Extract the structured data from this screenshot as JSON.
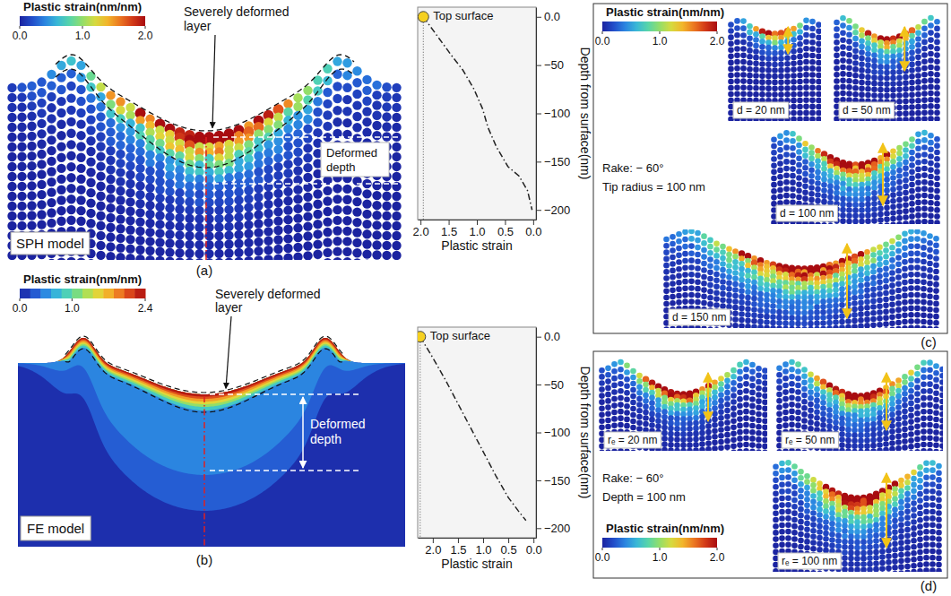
{
  "chart_data": [
    {
      "type": "line",
      "x": [
        1.95,
        1.7,
        1.45,
        1.25,
        1.05,
        0.9,
        0.8,
        0.65,
        0.45,
        0.25,
        0.1,
        0.02
      ],
      "values": [
        0,
        -20,
        -40,
        -55,
        -75,
        -95,
        -115,
        -135,
        -155,
        -165,
        -180,
        -200
      ],
      "color": "#222222",
      "line_style": "dashdot",
      "annotation": "Top surface",
      "x_label": "Plastic strain",
      "y_label": "Depth from surface(nm)",
      "xlim": [
        2.05,
        -0.05
      ],
      "xticks": [
        {
          "value": 2,
          "label": "2.0"
        },
        1.5,
        {
          "value": 1,
          "label": "1.0"
        },
        0.5,
        {
          "value": 0,
          "label": "0.0"
        }
      ],
      "ylim": [
        10,
        -210
      ],
      "yticks": [
        {
          "value": 0,
          "label": "0.0"
        },
        {
          "value": -50,
          "label": "−50"
        },
        {
          "value": -100,
          "label": "−100"
        },
        {
          "value": -150,
          "label": "−150"
        },
        {
          "value": -200,
          "label": "−200"
        }
      ]
    },
    {
      "type": "line",
      "x": [
        2.25,
        2.0,
        1.75,
        1.5,
        1.25,
        1.0,
        0.75,
        0.5,
        0.3,
        0.15
      ],
      "values": [
        0,
        -22,
        -45,
        -70,
        -95,
        -120,
        -145,
        -168,
        -182,
        -192
      ],
      "color": "#222222",
      "line_style": "dashdot",
      "annotation": "Top surface",
      "x_label": "Plastic strain",
      "y_label": "Depth from surface(nm)",
      "xlim": [
        2.3,
        -0.05
      ],
      "xticks": [
        {
          "value": 2,
          "label": "2.0"
        },
        1.5,
        {
          "value": 1,
          "label": "1.0"
        },
        0.5,
        {
          "value": 0,
          "label": "0.0"
        }
      ],
      "ylim": [
        10,
        -210
      ],
      "yticks": [
        {
          "value": 0,
          "label": "0.0"
        },
        {
          "value": -50,
          "label": "−50"
        },
        {
          "value": -100,
          "label": "−100"
        },
        {
          "value": -150,
          "label": "−150"
        },
        {
          "value": -200,
          "label": "−200"
        }
      ]
    }
  ],
  "figure": {
    "panel_a": {
      "label": "(a)",
      "model": "SPH model",
      "layer": "Severely deformed layer",
      "depth": "Deformed depth",
      "colorbar": {
        "title": "Plastic strain(nm/nm)",
        "range": [
          0,
          2
        ],
        "ticks": [
          {
            "value": 0,
            "label": "0.0"
          },
          {
            "value": 1,
            "label": "1.0"
          },
          {
            "value": 2,
            "label": "2.0"
          }
        ]
      }
    },
    "panel_b": {
      "label": "(b)",
      "model": "FE model",
      "layer": "Severely deformed layer",
      "depth": "Deformed depth",
      "colorbar": {
        "title": "Plastic strain(nm/nm)",
        "range": [
          0,
          2.4
        ],
        "ticks": [
          {
            "value": 0,
            "label": "0.0"
          },
          {
            "value": 1,
            "label": "1.0"
          },
          2.4
        ]
      }
    },
    "panel_c": {
      "label": "(c)",
      "conditions": [
        "Rake: − 60°",
        "Tip radius = 100 nm"
      ],
      "colorbar": {
        "title": "Plastic strain(nm/nm)",
        "range": [
          0,
          2
        ],
        "ticks": [
          {
            "value": 0,
            "label": "0.0"
          },
          {
            "value": 1,
            "label": "1.0"
          },
          {
            "value": 2,
            "label": "2.0"
          }
        ]
      },
      "images": [
        "d = 20 nm",
        "d = 50 nm",
        "d = 100 nm",
        "d = 150 nm"
      ]
    },
    "panel_d": {
      "label": "(d)",
      "conditions": [
        "Rake: − 60°",
        "Depth = 100 nm"
      ],
      "colorbar": {
        "title": "Plastic strain(nm/nm)",
        "range": [
          0,
          2
        ],
        "ticks": [
          {
            "value": 0,
            "label": "0.0"
          },
          {
            "value": 1,
            "label": "1.0"
          },
          {
            "value": 2,
            "label": "2.0"
          }
        ]
      },
      "images": [
        "rₑ = 20 nm",
        "rₑ = 50 nm",
        "rₑ = 100 nm"
      ]
    }
  }
}
